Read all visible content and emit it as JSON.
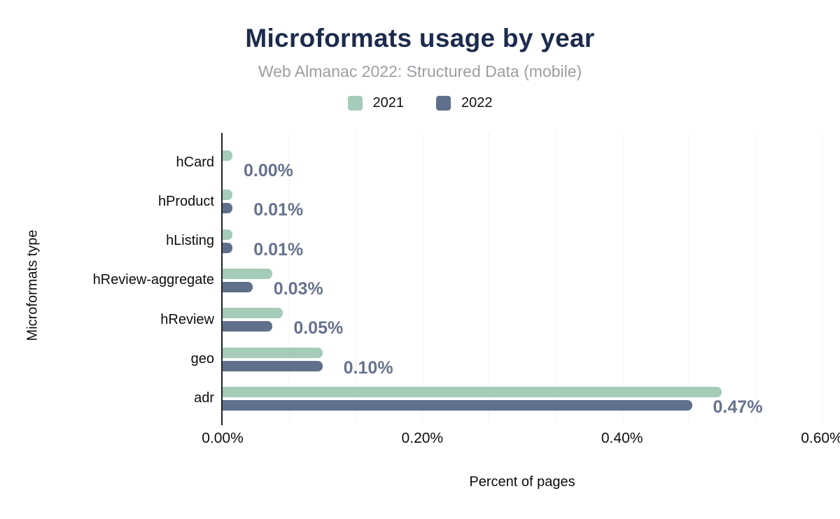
{
  "header": {
    "title": "Microformats usage by year",
    "subtitle": "Web Almanac 2022: Structured Data (mobile)"
  },
  "chart_data": {
    "type": "bar",
    "orientation": "horizontal",
    "title": "Microformats usage by year",
    "subtitle": "Web Almanac 2022: Structured Data (mobile)",
    "xlabel": "Percent of pages",
    "ylabel": "Microformats type",
    "xlim": [
      0,
      0.6
    ],
    "grid": "vertical",
    "minor_grid_divisions": 9,
    "legend_position": "top",
    "x_ticks": [
      {
        "label": "0.00%",
        "value": 0.0
      },
      {
        "label": "0.20%",
        "value": 0.2
      },
      {
        "label": "0.40%",
        "value": 0.4
      },
      {
        "label": "0.60%",
        "value": 0.6
      }
    ],
    "categories": [
      "hCard",
      "hProduct",
      "hListing",
      "hReview-aggregate",
      "hReview",
      "geo",
      "adr"
    ],
    "series": [
      {
        "name": "2021",
        "color": "#a5cbb9",
        "values": [
          0.01,
          0.01,
          0.01,
          0.05,
          0.06,
          0.1,
          0.5
        ]
      },
      {
        "name": "2022",
        "color": "#60708c",
        "values": [
          0.0,
          0.01,
          0.01,
          0.03,
          0.05,
          0.1,
          0.47
        ]
      }
    ],
    "data_labels": [
      "0.00%",
      "0.01%",
      "0.01%",
      "0.03%",
      "0.05%",
      "0.10%",
      "0.47%"
    ],
    "data_label_series": "2022"
  },
  "style": {
    "title_color": "#1c2b4d",
    "subtitle_color": "#9b9ea3",
    "data_label_color": "#66728e",
    "grid_color": "#eef1f3",
    "axis_color": "#202327",
    "background": "#ffffff"
  }
}
